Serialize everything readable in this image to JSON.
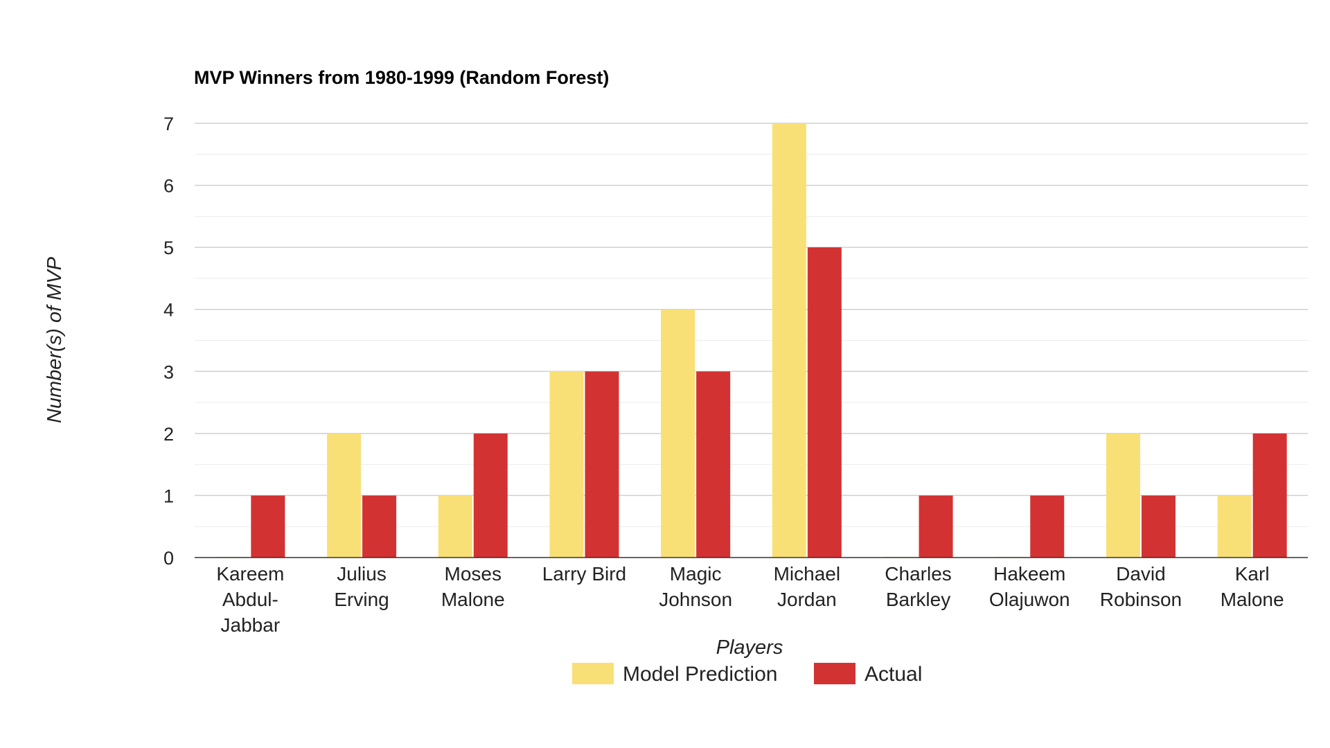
{
  "chart_data": {
    "type": "bar",
    "title": "MVP Winners from 1980-1999 (Random Forest)",
    "xlabel": "Players",
    "ylabel": "Number(s) of MVP",
    "ylim": [
      0,
      7
    ],
    "yticks": [
      "0",
      "1",
      "2",
      "3",
      "4",
      "5",
      "6",
      "7"
    ],
    "grid": true,
    "legend_position": "bottom",
    "categories": [
      [
        "Kareem",
        "Abdul-",
        "Jabbar"
      ],
      [
        "Julius",
        "Erving"
      ],
      [
        "Moses",
        "Malone"
      ],
      [
        "Larry Bird"
      ],
      [
        "Magic",
        "Johnson"
      ],
      [
        "Michael",
        "Jordan"
      ],
      [
        "Charles",
        "Barkley"
      ],
      [
        "Hakeem",
        "Olajuwon"
      ],
      [
        "David",
        "Robinson"
      ],
      [
        "Karl",
        "Malone"
      ]
    ],
    "series": [
      {
        "name": "Model Prediction",
        "color": "#F9E076",
        "values": [
          0,
          2,
          1,
          3,
          4,
          7,
          0,
          0,
          2,
          1
        ]
      },
      {
        "name": "Actual",
        "color": "#D33232",
        "values": [
          1,
          1,
          2,
          3,
          3,
          5,
          1,
          1,
          1,
          2
        ]
      }
    ]
  }
}
